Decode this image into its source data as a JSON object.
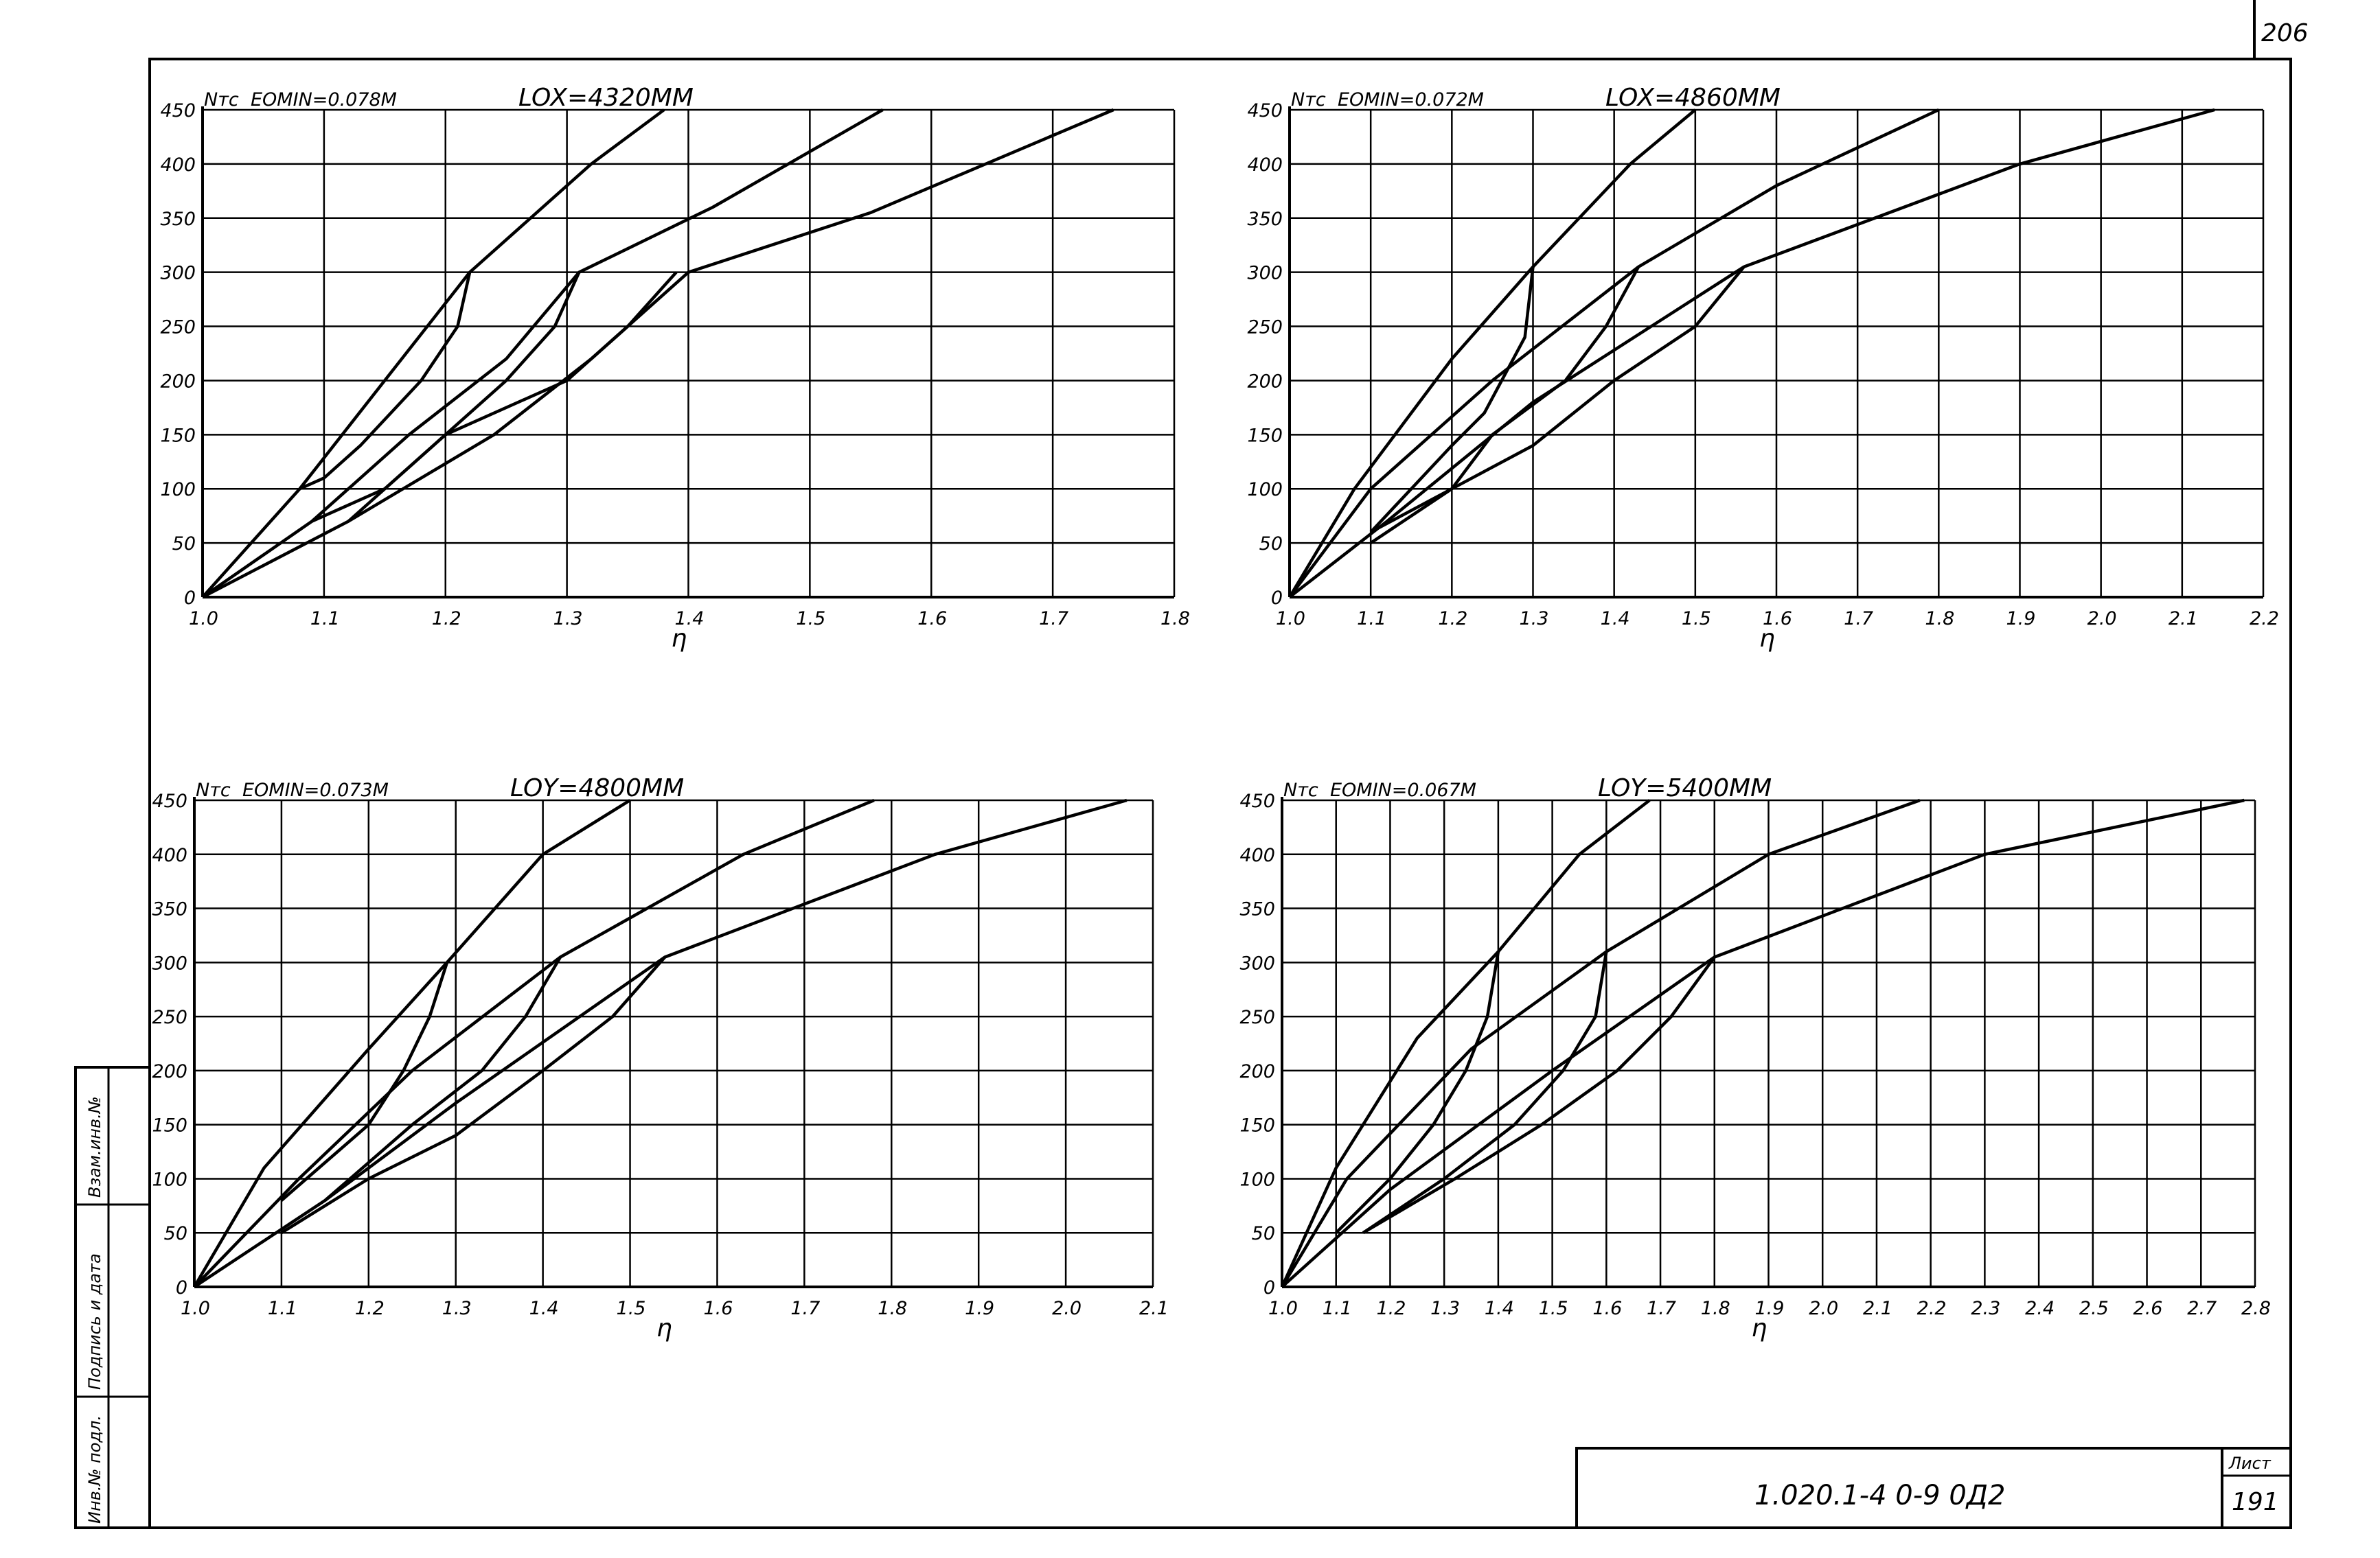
{
  "sheet": {
    "page_number": "206",
    "designation": "1.020.1-4  0-9  0Д2",
    "sheet_label": "Лист",
    "sheet_number": "191",
    "side_labels": [
      "Инв.№ подл.",
      "Подпись и дата",
      "Взам.инв.№"
    ]
  },
  "chart_data": [
    {
      "type": "line",
      "ylabel": "Nтс",
      "xlabel": "η",
      "eomin": "EOMIN=0.078M",
      "length": "LOX=4320MM",
      "xlim": [
        1.0,
        1.8
      ],
      "ylim": [
        0,
        450
      ],
      "xticks": [
        "1.0",
        "1.1",
        "1.2",
        "1.3",
        "1.4",
        "1.5",
        "1.6",
        "1.7",
        "1.8"
      ],
      "yticks": [
        "0",
        "50",
        "100",
        "150",
        "200",
        "250",
        "300",
        "350",
        "400",
        "450"
      ],
      "series": [
        {
          "points": [
            [
              1.0,
              0
            ],
            [
              1.08,
              100
            ],
            [
              1.15,
              200
            ],
            [
              1.22,
              300
            ],
            [
              1.32,
              400
            ],
            [
              1.38,
              450
            ]
          ]
        },
        {
          "points": [
            [
              1.0,
              0
            ],
            [
              1.09,
              70
            ],
            [
              1.17,
              150
            ],
            [
              1.25,
              220
            ],
            [
              1.31,
              300
            ],
            [
              1.42,
              360
            ],
            [
              1.56,
              450
            ]
          ]
        },
        {
          "points": [
            [
              1.0,
              0
            ],
            [
              1.12,
              70
            ],
            [
              1.24,
              150
            ],
            [
              1.32,
              220
            ],
            [
              1.4,
              300
            ],
            [
              1.55,
              355
            ],
            [
              1.75,
              450
            ]
          ]
        },
        {
          "points": [
            [
              1.22,
              300
            ],
            [
              1.21,
              250
            ],
            [
              1.18,
              200
            ],
            [
              1.13,
              140
            ],
            [
              1.1,
              110
            ],
            [
              1.08,
              100
            ]
          ]
        },
        {
          "points": [
            [
              1.31,
              300
            ],
            [
              1.29,
              250
            ],
            [
              1.25,
              200
            ],
            [
              1.2,
              150
            ],
            [
              1.15,
              100
            ],
            [
              1.09,
              70
            ]
          ]
        },
        {
          "points": [
            [
              1.39,
              300
            ],
            [
              1.35,
              250
            ],
            [
              1.3,
              200
            ],
            [
              1.2,
              150
            ],
            [
              1.12,
              70
            ]
          ]
        }
      ]
    },
    {
      "type": "line",
      "ylabel": "Nтс",
      "xlabel": "η",
      "eomin": "EOMIN=0.072M",
      "length": "LOX=4860MM",
      "xlim": [
        1.0,
        2.2
      ],
      "ylim": [
        0,
        450
      ],
      "xticks": [
        "1.0",
        "1.1",
        "1.2",
        "1.3",
        "1.4",
        "1.5",
        "1.6",
        "1.7",
        "1.8",
        "1.9",
        "2.0",
        "2.1",
        "2.2"
      ],
      "yticks": [
        "0",
        "50",
        "100",
        "150",
        "200",
        "250",
        "300",
        "350",
        "400",
        "450"
      ],
      "series": [
        {
          "points": [
            [
              1.0,
              0
            ],
            [
              1.08,
              100
            ],
            [
              1.2,
              220
            ],
            [
              1.3,
              305
            ],
            [
              1.42,
              400
            ],
            [
              1.5,
              450
            ]
          ]
        },
        {
          "points": [
            [
              1.0,
              0
            ],
            [
              1.1,
              100
            ],
            [
              1.25,
              200
            ],
            [
              1.43,
              305
            ],
            [
              1.6,
              380
            ],
            [
              1.8,
              450
            ]
          ]
        },
        {
          "points": [
            [
              1.0,
              0
            ],
            [
              1.12,
              70
            ],
            [
              1.3,
              180
            ],
            [
              1.56,
              305
            ],
            [
              1.9,
              400
            ],
            [
              2.14,
              450
            ]
          ]
        },
        {
          "points": [
            [
              1.3,
              305
            ],
            [
              1.29,
              240
            ],
            [
              1.24,
              170
            ],
            [
              1.2,
              140
            ],
            [
              1.1,
              60
            ]
          ]
        },
        {
          "points": [
            [
              1.43,
              305
            ],
            [
              1.39,
              250
            ],
            [
              1.34,
              200
            ],
            [
              1.25,
              150
            ],
            [
              1.2,
              100
            ],
            [
              1.1,
              60
            ]
          ]
        },
        {
          "points": [
            [
              1.56,
              305
            ],
            [
              1.5,
              250
            ],
            [
              1.4,
              200
            ],
            [
              1.3,
              140
            ],
            [
              1.2,
              100
            ],
            [
              1.1,
              50
            ]
          ]
        }
      ]
    },
    {
      "type": "line",
      "ylabel": "Nтс",
      "xlabel": "η",
      "eomin": "EOMIN=0.073M",
      "length": "LOY=4800MM",
      "xlim": [
        1.0,
        2.1
      ],
      "ylim": [
        0,
        450
      ],
      "xticks": [
        "1.0",
        "1.1",
        "1.2",
        "1.3",
        "1.4",
        "1.5",
        "1.6",
        "1.7",
        "1.8",
        "1.9",
        "2.0",
        "2.1"
      ],
      "yticks": [
        "0",
        "50",
        "100",
        "150",
        "200",
        "250",
        "300",
        "350",
        "400",
        "450"
      ],
      "series": [
        {
          "points": [
            [
              1.0,
              0
            ],
            [
              1.08,
              110
            ],
            [
              1.2,
              220
            ],
            [
              1.29,
              300
            ],
            [
              1.4,
              400
            ],
            [
              1.5,
              450
            ]
          ]
        },
        {
          "points": [
            [
              1.0,
              0
            ],
            [
              1.12,
              100
            ],
            [
              1.25,
              200
            ],
            [
              1.42,
              305
            ],
            [
              1.63,
              400
            ],
            [
              1.78,
              450
            ]
          ]
        },
        {
          "points": [
            [
              1.0,
              0
            ],
            [
              1.15,
              80
            ],
            [
              1.3,
              170
            ],
            [
              1.54,
              305
            ],
            [
              1.85,
              400
            ],
            [
              2.07,
              450
            ]
          ]
        },
        {
          "points": [
            [
              1.29,
              300
            ],
            [
              1.27,
              250
            ],
            [
              1.24,
              200
            ],
            [
              1.2,
              150
            ],
            [
              1.1,
              80
            ]
          ]
        },
        {
          "points": [
            [
              1.42,
              305
            ],
            [
              1.38,
              250
            ],
            [
              1.33,
              200
            ],
            [
              1.25,
              150
            ],
            [
              1.15,
              80
            ]
          ]
        },
        {
          "points": [
            [
              1.54,
              305
            ],
            [
              1.48,
              250
            ],
            [
              1.4,
              200
            ],
            [
              1.3,
              140
            ],
            [
              1.2,
              100
            ],
            [
              1.1,
              50
            ]
          ]
        }
      ]
    },
    {
      "type": "line",
      "ylabel": "Nтс",
      "xlabel": "η",
      "eomin": "EOMIN=0.067M",
      "length": "LOY=5400MM",
      "xlim": [
        1.0,
        2.8
      ],
      "ylim": [
        0,
        450
      ],
      "xticks": [
        "1.0",
        "1.1",
        "1.2",
        "1.3",
        "1.4",
        "1.5",
        "1.6",
        "1.7",
        "1.8",
        "1.9",
        "2.0",
        "2.1",
        "2.2",
        "2.3",
        "2.4",
        "2.5",
        "2.6",
        "2.7",
        "2.8"
      ],
      "yticks": [
        "0",
        "50",
        "100",
        "150",
        "200",
        "250",
        "300",
        "350",
        "400",
        "450"
      ],
      "series": [
        {
          "points": [
            [
              1.0,
              0
            ],
            [
              1.1,
              110
            ],
            [
              1.25,
              230
            ],
            [
              1.4,
              310
            ],
            [
              1.55,
              400
            ],
            [
              1.68,
              450
            ]
          ]
        },
        {
          "points": [
            [
              1.0,
              0
            ],
            [
              1.12,
              100
            ],
            [
              1.35,
              220
            ],
            [
              1.6,
              310
            ],
            [
              1.9,
              400
            ],
            [
              2.18,
              450
            ]
          ]
        },
        {
          "points": [
            [
              1.0,
              0
            ],
            [
              1.2,
              90
            ],
            [
              1.5,
              200
            ],
            [
              1.8,
              305
            ],
            [
              2.3,
              400
            ],
            [
              2.78,
              450
            ]
          ]
        },
        {
          "points": [
            [
              1.4,
              310
            ],
            [
              1.38,
              250
            ],
            [
              1.34,
              200
            ],
            [
              1.28,
              150
            ],
            [
              1.2,
              100
            ],
            [
              1.1,
              50
            ]
          ]
        },
        {
          "points": [
            [
              1.6,
              310
            ],
            [
              1.58,
              250
            ],
            [
              1.52,
              200
            ],
            [
              1.43,
              150
            ],
            [
              1.3,
              100
            ],
            [
              1.15,
              50
            ]
          ]
        },
        {
          "points": [
            [
              1.8,
              305
            ],
            [
              1.72,
              250
            ],
            [
              1.62,
              200
            ],
            [
              1.48,
              150
            ],
            [
              1.32,
              100
            ],
            [
              1.15,
              50
            ]
          ]
        }
      ]
    }
  ]
}
